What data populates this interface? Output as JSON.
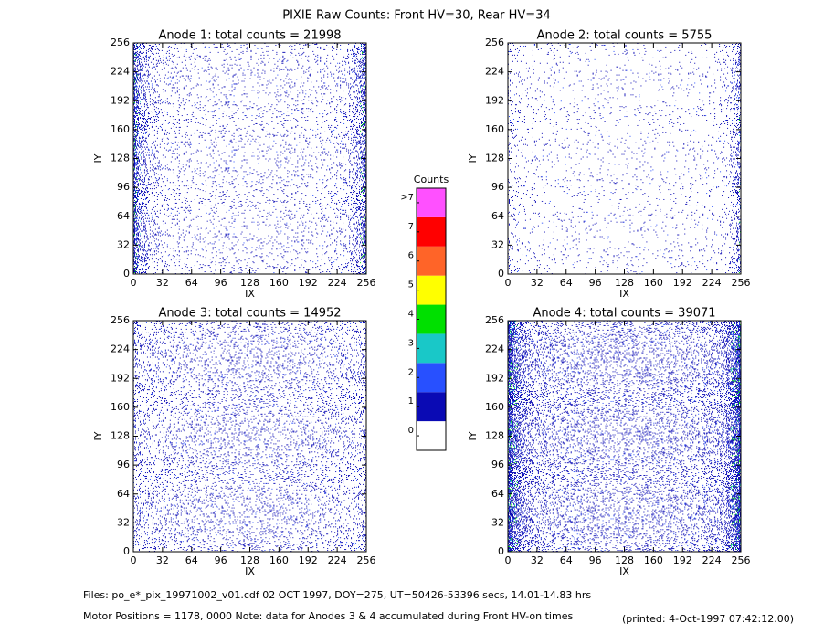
{
  "title": "PIXIE Raw Counts:  Front HV=30, Rear HV=34",
  "chart_data": [
    {
      "type": "heatmap",
      "title": "Anode 1: total counts = 21998",
      "xlabel": "IX",
      "ylabel": "IY",
      "xlim": [
        0,
        256
      ],
      "ylim": [
        0,
        256
      ],
      "xticks": [
        0,
        32,
        64,
        96,
        128,
        160,
        192,
        224,
        256
      ],
      "yticks": [
        0,
        32,
        64,
        96,
        128,
        160,
        192,
        224,
        256
      ]
    },
    {
      "type": "heatmap",
      "title": "Anode 2: total counts = 5755",
      "xlabel": "IX",
      "ylabel": "IY",
      "xlim": [
        0,
        256
      ],
      "ylim": [
        0,
        256
      ],
      "xticks": [
        0,
        32,
        64,
        96,
        128,
        160,
        192,
        224,
        256
      ],
      "yticks": [
        0,
        32,
        64,
        96,
        128,
        160,
        192,
        224,
        256
      ]
    },
    {
      "type": "heatmap",
      "title": "Anode 3: total counts = 14952",
      "xlabel": "IX",
      "ylabel": "IY",
      "xlim": [
        0,
        256
      ],
      "ylim": [
        0,
        256
      ],
      "xticks": [
        0,
        32,
        64,
        96,
        128,
        160,
        192,
        224,
        256
      ],
      "yticks": [
        0,
        32,
        64,
        96,
        128,
        160,
        192,
        224,
        256
      ]
    },
    {
      "type": "heatmap",
      "title": "Anode 4: total counts = 39071",
      "xlabel": "IX",
      "ylabel": "IY",
      "xlim": [
        0,
        256
      ],
      "ylim": [
        0,
        256
      ],
      "xticks": [
        0,
        32,
        64,
        96,
        128,
        160,
        192,
        224,
        256
      ],
      "yticks": [
        0,
        32,
        64,
        96,
        128,
        160,
        192,
        224,
        256
      ]
    }
  ],
  "colorbar": {
    "title": "Counts",
    "ticks": [
      0,
      1,
      2,
      3,
      4,
      5,
      6,
      7,
      {
        "value": 8,
        "label": ">7"
      }
    ],
    "colors": [
      "#ffffff",
      "#0a0ab4",
      "#2850ff",
      "#19c8c8",
      "#00e000",
      "#ffff00",
      "#ff6428",
      "#ff0000",
      "#ff50ff"
    ]
  },
  "footer": {
    "files": "Files: po_e*_pix_19971002_v01.cdf     02 OCT 1997, DOY=275, UT=50426-53396 secs, 14.01-14.83 hrs",
    "motor": "Motor Positions = 1178, 0000   Note: data for Anodes 3 & 4 accumulated during Front HV-on times",
    "printed": "(printed:  4-Oct-1997 07:42:12.00)"
  }
}
